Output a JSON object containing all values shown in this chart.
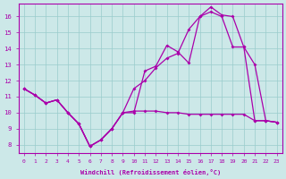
{
  "xlabel": "Windchill (Refroidissement éolien,°C)",
  "xlim": [
    -0.5,
    23.5
  ],
  "ylim": [
    7.5,
    16.8
  ],
  "xticks": [
    0,
    1,
    2,
    3,
    4,
    5,
    6,
    7,
    8,
    9,
    10,
    11,
    12,
    13,
    14,
    15,
    16,
    17,
    18,
    19,
    20,
    21,
    22,
    23
  ],
  "yticks": [
    8,
    9,
    10,
    11,
    12,
    13,
    14,
    15,
    16
  ],
  "bg_color": "#cce8e8",
  "line_color": "#aa00aa",
  "grid_color": "#99cccc",
  "line1_x": [
    0,
    1,
    2,
    3,
    4,
    5,
    6,
    7,
    8,
    9,
    10,
    11,
    12,
    13,
    14,
    15,
    16,
    17,
    18,
    19,
    20,
    21,
    22,
    23
  ],
  "line1_y": [
    11.5,
    11.1,
    10.6,
    10.8,
    10.0,
    9.3,
    7.9,
    8.3,
    9.0,
    10.0,
    10.0,
    12.6,
    12.9,
    14.2,
    13.8,
    13.1,
    16.0,
    16.3,
    16.0,
    14.1,
    14.1,
    13.0,
    9.5,
    9.4
  ],
  "line2_x": [
    0,
    1,
    2,
    3,
    4,
    5,
    6,
    7,
    8,
    9,
    10,
    11,
    12,
    13,
    14,
    15,
    16,
    17,
    18,
    19,
    20,
    21,
    22,
    23
  ],
  "line2_y": [
    11.5,
    11.1,
    10.6,
    10.8,
    10.0,
    9.3,
    7.9,
    8.3,
    9.0,
    10.0,
    10.1,
    10.1,
    10.1,
    10.0,
    10.0,
    9.9,
    9.9,
    9.9,
    9.9,
    9.9,
    9.9,
    9.5,
    9.5,
    9.4
  ],
  "line3_x": [
    0,
    1,
    2,
    3,
    4,
    5,
    6,
    7,
    8,
    9,
    10,
    11,
    12,
    13,
    14,
    15,
    16,
    17,
    18,
    19,
    20,
    21,
    22,
    23
  ],
  "line3_y": [
    11.5,
    11.1,
    10.6,
    10.8,
    10.0,
    9.3,
    7.9,
    8.3,
    9.0,
    10.0,
    11.5,
    12.0,
    12.8,
    13.4,
    13.7,
    15.2,
    16.0,
    16.6,
    16.1,
    16.0,
    14.1,
    9.5,
    9.5,
    9.4
  ]
}
